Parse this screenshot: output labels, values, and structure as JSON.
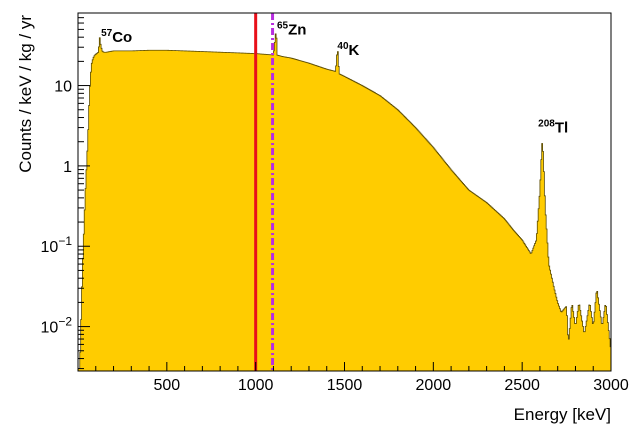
{
  "chart_data": {
    "type": "area",
    "xlabel": "Energy [keV]",
    "ylabel": "Counts / keV / kg / yr",
    "xlim": [
      0,
      3000
    ],
    "ylim": [
      0.0028,
      80
    ],
    "y_scale": "log",
    "x_ticks": [
      500,
      1000,
      1500,
      2000,
      2500,
      3000
    ],
    "x_tick_labels": [
      "500",
      "1000",
      "1500",
      "2000",
      "2500",
      "3000"
    ],
    "y_ticks": [
      {
        "base": "10",
        "exp": "−2",
        "value": 0.01
      },
      {
        "base": "10",
        "exp": "−1",
        "value": 0.1
      },
      {
        "base": "1",
        "exp": "",
        "value": 1
      },
      {
        "base": "10",
        "exp": "",
        "value": 10
      }
    ],
    "fill_color": "#ffcc00",
    "edge_color": "#5a4a00",
    "spectrum": {
      "x": [
        10,
        25,
        40,
        55,
        65,
        75,
        85,
        95,
        105,
        115,
        122,
        128,
        136,
        145,
        160,
        200,
        300,
        400,
        500,
        600,
        700,
        800,
        900,
        1000,
        1050,
        1100,
        1116,
        1120,
        1150,
        1200,
        1300,
        1400,
        1450,
        1461,
        1470,
        1500,
        1600,
        1700,
        1800,
        1900,
        2000,
        2100,
        2200,
        2300,
        2400,
        2450,
        2500,
        2550,
        2580,
        2600,
        2610,
        2614,
        2620,
        2630,
        2650,
        2680,
        2700,
        2720,
        2750,
        2760,
        2780,
        2800,
        2820,
        2850,
        2880,
        2900,
        2920,
        2950,
        2970,
        3000
      ],
      "y": [
        0.003,
        0.05,
        0.4,
        2.0,
        8.0,
        18.0,
        22.0,
        24.0,
        25.0,
        26.0,
        40.0,
        32.0,
        27.0,
        26.0,
        26.0,
        27.0,
        27.0,
        27.5,
        27.5,
        27.0,
        26.5,
        26.0,
        25.5,
        25.0,
        24.5,
        24.0,
        52.0,
        24.0,
        23.0,
        22.0,
        19.0,
        16.0,
        15.0,
        30.0,
        14.0,
        13.0,
        10.0,
        7.5,
        5.0,
        3.0,
        1.7,
        0.9,
        0.5,
        0.35,
        0.22,
        0.16,
        0.12,
        0.08,
        0.12,
        0.5,
        1.6,
        2.1,
        1.2,
        0.3,
        0.06,
        0.03,
        0.02,
        0.015,
        0.018,
        0.006,
        0.02,
        0.01,
        0.02,
        0.008,
        0.02,
        0.01,
        0.03,
        0.01,
        0.02,
        0.005
      ]
    },
    "vertical_lines": [
      {
        "x": 1000,
        "color": "#e8101a",
        "style": "solid"
      },
      {
        "x": 1095,
        "color": "#b82ee0",
        "style": "dashdot"
      }
    ],
    "annotations": [
      {
        "sup": "57",
        "text": "Co",
        "x": 130,
        "y": 35
      },
      {
        "sup": "65",
        "text": "Zn",
        "x": 1120,
        "y": 43
      },
      {
        "sup": "40",
        "text": "K",
        "x": 1460,
        "y": 24
      },
      {
        "sup": "208",
        "text": "Tl",
        "x": 2590,
        "y": 2.6
      }
    ]
  }
}
